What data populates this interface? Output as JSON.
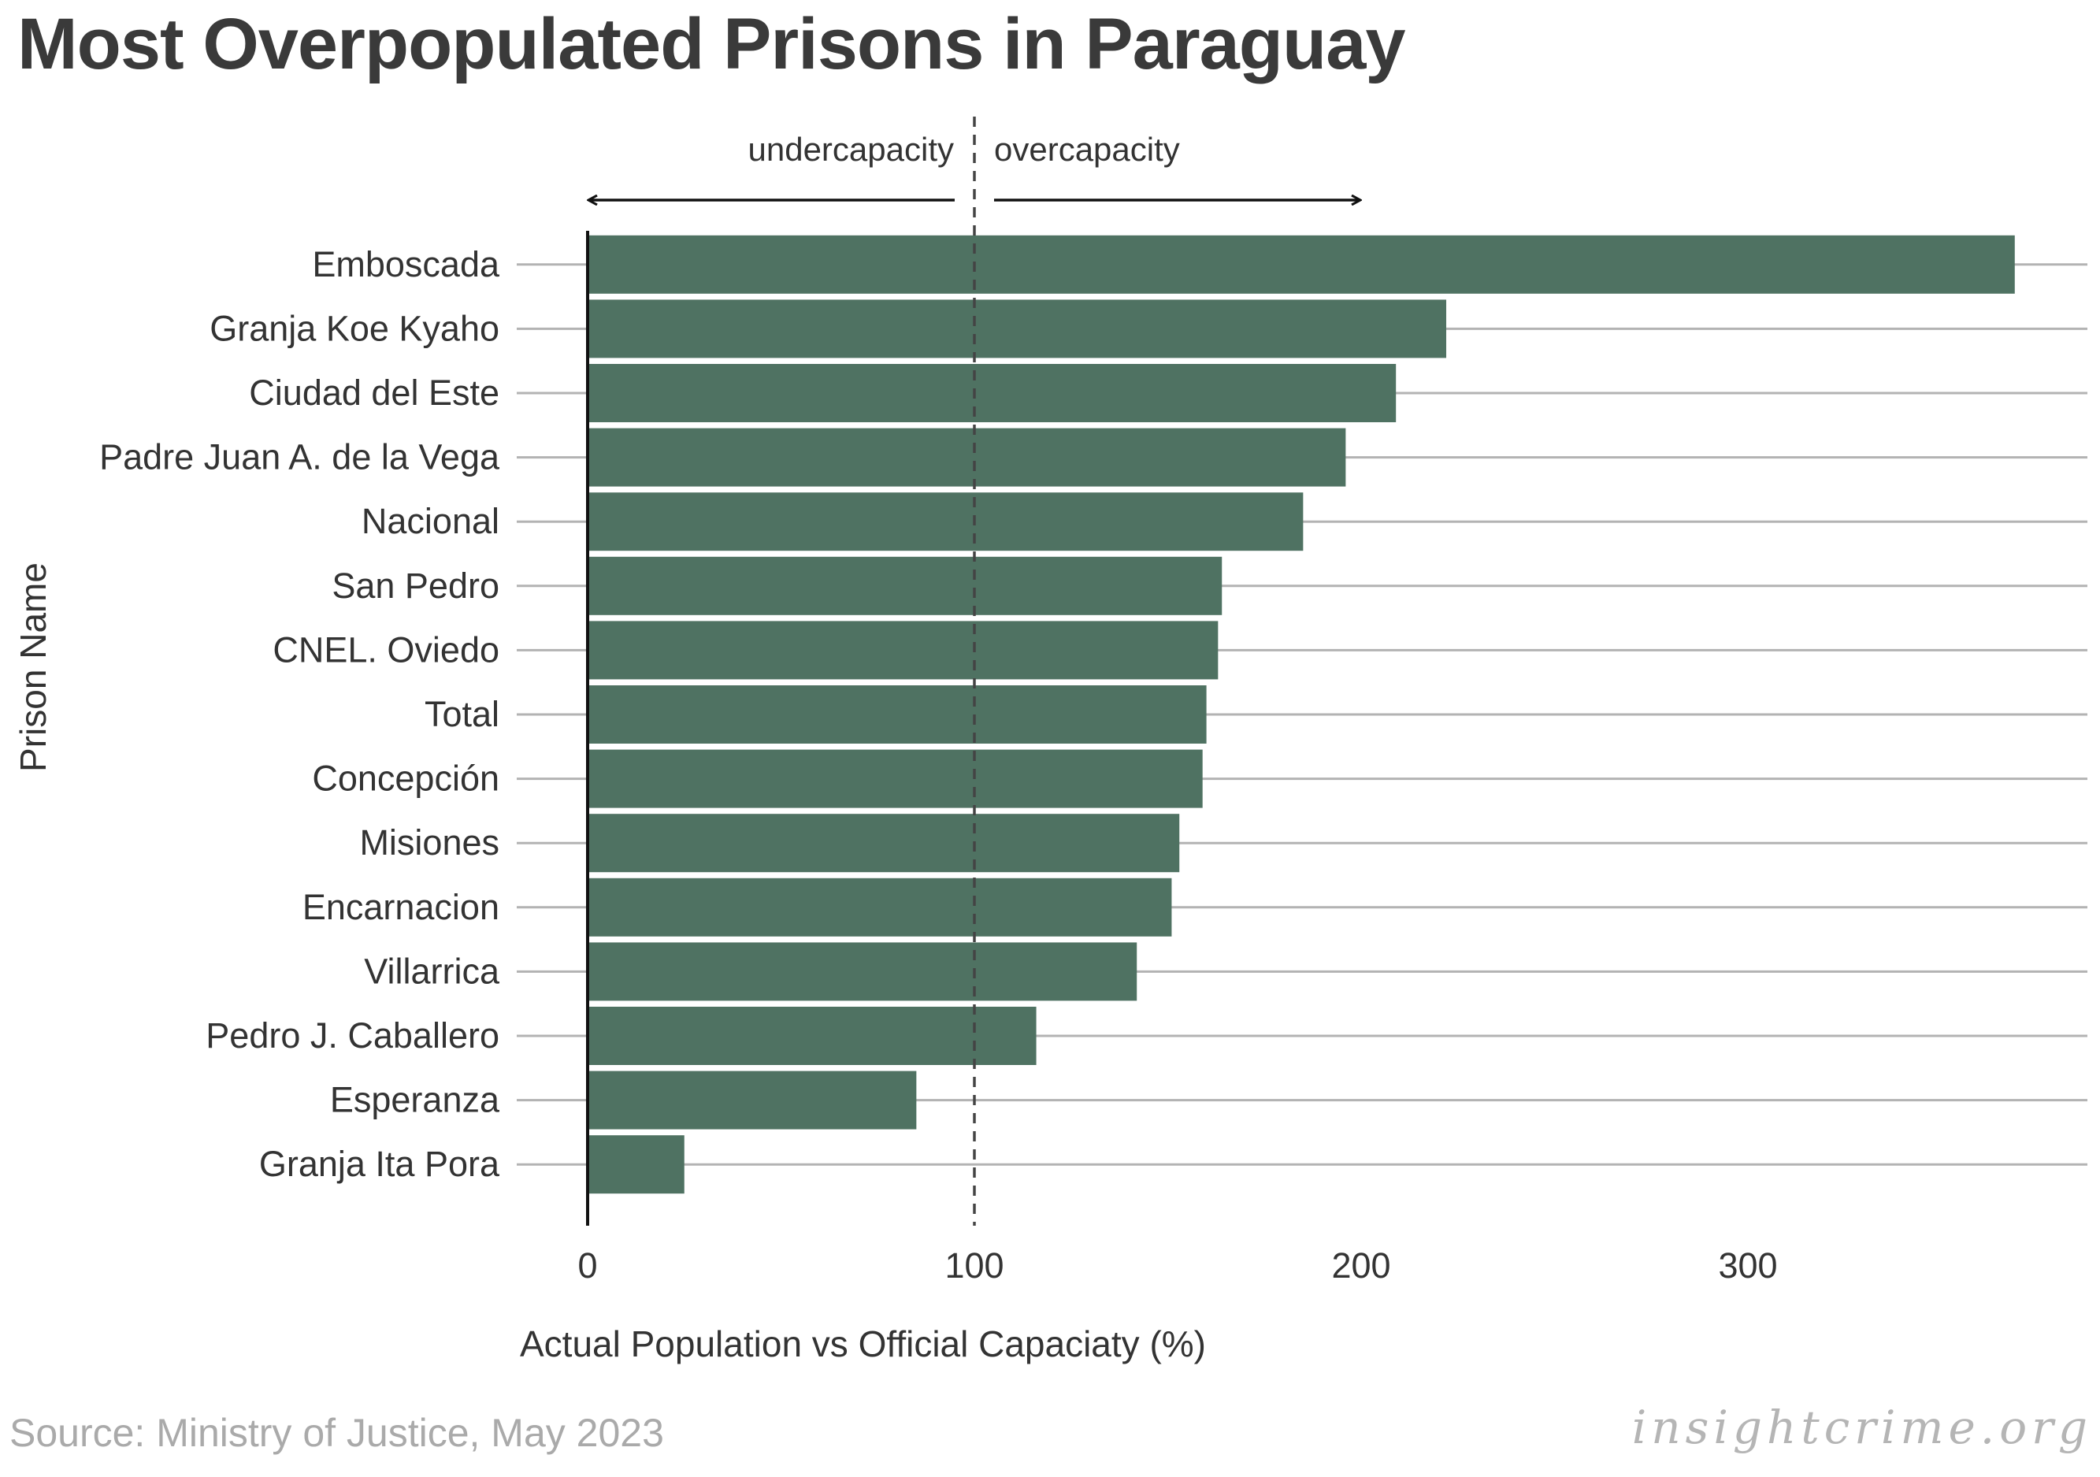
{
  "title": "Most Overpopulated Prisons in Paraguay",
  "source": "Source: Ministry of Justice, May 2023",
  "brand": "insightcrime.org",
  "colors": {
    "bar": "#4f7262",
    "gridline": "#b3b3b3",
    "text": "#333333"
  },
  "annotations": {
    "under": "undercapacity",
    "over": "overcapacity"
  },
  "chart_data": {
    "type": "bar",
    "orientation": "horizontal",
    "title": "Most Overpopulated Prisons in Paraguay",
    "xlabel": "Actual Population vs Official Capaciaty (%)",
    "ylabel": "Prison Name",
    "xlim": [
      0,
      387
    ],
    "xticks": [
      0,
      100,
      200,
      300
    ],
    "reference_line": 100,
    "categories": [
      "Emboscada",
      "Granja Koe Kyaho",
      "Ciudad del Este",
      "Padre Juan A. de la Vega",
      "Nacional",
      "San Pedro",
      "CNEL. Oviedo",
      "Total",
      "Concepción",
      "Misiones",
      "Encarnacion",
      "Villarrica",
      "Pedro J. Caballero",
      "Esperanza",
      "Granja Ita Pora"
    ],
    "values": [
      369,
      222,
      209,
      196,
      185,
      164,
      163,
      160,
      159,
      153,
      151,
      142,
      116,
      85,
      25
    ],
    "grid": "horizontal",
    "legend": "none"
  }
}
